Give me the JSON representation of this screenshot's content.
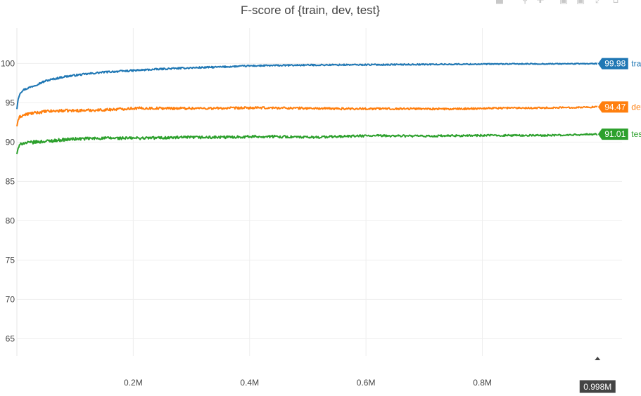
{
  "chart_data": {
    "type": "line",
    "title": "F-score of {train, dev, test}",
    "xlabel": "",
    "ylabel": "",
    "xlim": [
      0,
      1040000
    ],
    "ylim": [
      62.8,
      104.5
    ],
    "x_ticks": [
      200000,
      400000,
      600000,
      800000
    ],
    "x_tick_labels": [
      "0.2M",
      "0.4M",
      "0.6M",
      "0.8M"
    ],
    "y_ticks": [
      65,
      70,
      75,
      80,
      85,
      90,
      95,
      100
    ],
    "y_tick_labels": [
      "65",
      "70",
      "75",
      "80",
      "85",
      "90",
      "95",
      "100"
    ],
    "grid": true,
    "x": [
      0,
      2000,
      5000,
      10000,
      20000,
      30000,
      50000,
      80000,
      100000,
      150000,
      200000,
      250000,
      300000,
      350000,
      400000,
      450000,
      500000,
      550000,
      600000,
      650000,
      700000,
      750000,
      800000,
      850000,
      900000,
      950000,
      998000
    ],
    "series": [
      {
        "name": "train",
        "color": "#1f77b4",
        "values": [
          94.2,
          95.4,
          96.2,
          96.6,
          96.9,
          97.2,
          97.8,
          98.3,
          98.5,
          98.9,
          99.1,
          99.3,
          99.45,
          99.55,
          99.7,
          99.75,
          99.8,
          99.82,
          99.84,
          99.86,
          99.88,
          99.9,
          99.92,
          99.94,
          99.95,
          99.96,
          99.98
        ],
        "end_label": "99.98"
      },
      {
        "name": "dev",
        "color": "#ff7f0e",
        "values": [
          92.0,
          92.8,
          93.2,
          93.4,
          93.6,
          93.7,
          93.9,
          94.0,
          94.0,
          94.1,
          94.3,
          94.3,
          94.3,
          94.3,
          94.35,
          94.35,
          94.3,
          94.25,
          94.25,
          94.25,
          94.25,
          94.2,
          94.3,
          94.35,
          94.35,
          94.4,
          94.47
        ],
        "end_label": "94.47"
      },
      {
        "name": "test",
        "color": "#2ca02c",
        "values": [
          88.5,
          89.2,
          89.6,
          89.9,
          89.9,
          90.0,
          90.1,
          90.3,
          90.4,
          90.5,
          90.5,
          90.55,
          90.6,
          90.6,
          90.7,
          90.7,
          90.6,
          90.7,
          90.8,
          90.8,
          90.75,
          90.8,
          90.85,
          90.85,
          90.85,
          90.9,
          91.01
        ],
        "end_label": "91.01"
      }
    ],
    "hover_x_label": "0.998M"
  }
}
